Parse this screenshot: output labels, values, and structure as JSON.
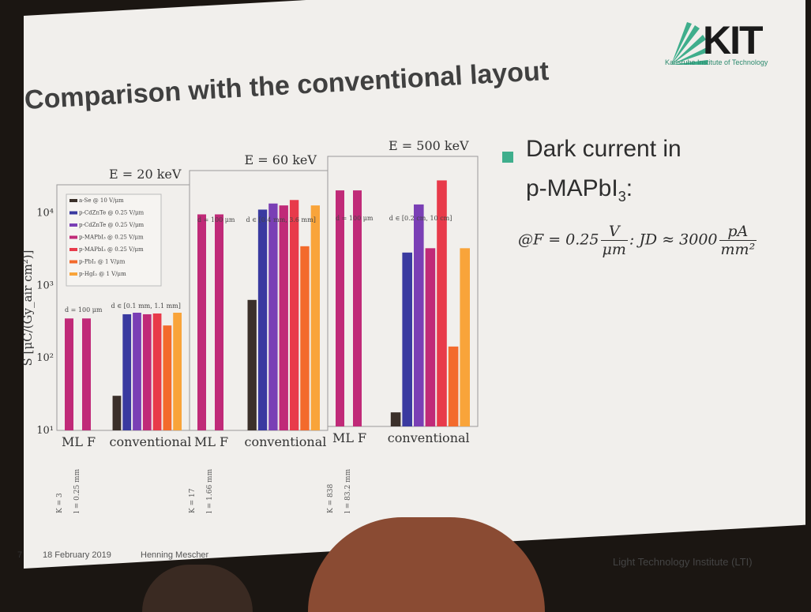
{
  "slide": {
    "title": "Comparison with the conventional layout",
    "logo_text": "KIT",
    "logo_subtitle": "Karlsruhe Institute of Technology",
    "bullet_line1": "Dark current in",
    "bullet_line2_main": "p-MAPbI",
    "bullet_line2_sub": "3",
    "bullet_line2_tail": ":",
    "formula": {
      "prefix": "@F = 0.25",
      "num1": "V",
      "den1": "μm",
      "middle": ": JD ≈ 3000",
      "num2": "pA",
      "den2": "mm²"
    },
    "footer": {
      "page_number": "7",
      "date": "18 February 2019",
      "author": "Henning Mescher",
      "institute": "Light Technology Institute (LTI)"
    },
    "colors": {
      "accent": "#3fae8c",
      "background": "#f1efec"
    }
  },
  "chart_data": {
    "type": "bar",
    "ylabel": "S [μC/(Gy_air cm²)]",
    "yscale": "log",
    "ylim": [
      10,
      20000
    ],
    "ytick_labels": [
      "10¹",
      "10²",
      "10³",
      "10⁴"
    ],
    "ytick_values": [
      10,
      100,
      1000,
      10000
    ],
    "legend": {
      "placement": "top-left",
      "entries": [
        {
          "label": "a-Se @ 10 V/μm",
          "color": "#3b302a"
        },
        {
          "label": "p-CdZnTe @ 0.25 V/μm",
          "color": "#3a3aa0"
        },
        {
          "label": "p-CdZnTe @ 0.25 V/μm",
          "color": "#7a3fb5"
        },
        {
          "label": "p-MAPbI₃ @ 0.25 V/μm",
          "color": "#c02a78"
        },
        {
          "label": "p-MAPbI₃ @ 0.25 V/μm",
          "color": "#e83a4a"
        },
        {
          "label": "p-PbI₂ @ 1 V/μm",
          "color": "#f36a2c"
        },
        {
          "label": "p-HgI₂ @ 1 V/μm",
          "color": "#f9a43a"
        }
      ]
    },
    "panels": [
      {
        "energy_label": "E = 20 keV",
        "ml_label": "ML",
        "f_label": "F",
        "conv_label": "conventional",
        "d_label_left": "d = 100 μm",
        "d_label_right": "d ∈ [0.1 mm, 1.1 mm]",
        "k_label": "K = 3",
        "l_label": "l = 0.25 mm",
        "ml_value": 350,
        "f_value": 350,
        "conventional_values": [
          30,
          400,
          420,
          400,
          410,
          280,
          420
        ]
      },
      {
        "energy_label": "E = 60 keV",
        "ml_label": "ML",
        "f_label": "F",
        "conv_label": "conventional",
        "d_label_left": "d = 100 μm",
        "d_label_right": "d ∈ [0.4 mm, 3.6 mm]",
        "k_label": "K = 17",
        "l_label": "l = 1.66 mm",
        "ml_value": 6500,
        "f_value": 6500,
        "conventional_values": [
          500,
          7500,
          9000,
          8500,
          10000,
          2500,
          8500
        ]
      },
      {
        "energy_label": "E = 500 keV",
        "ml_label": "ML",
        "f_label": "F",
        "conv_label": "conventional",
        "d_label_left": "d = 100 μm",
        "d_label_right": "d ∈ [0.2 cm, 10 cm]",
        "k_label": "K = 838",
        "l_label": "l = 83.2 mm",
        "ml_value": 9000,
        "f_value": 9000,
        "conventional_values": [
          15,
          1500,
          6000,
          1700,
          12000,
          100,
          1700
        ]
      }
    ]
  }
}
